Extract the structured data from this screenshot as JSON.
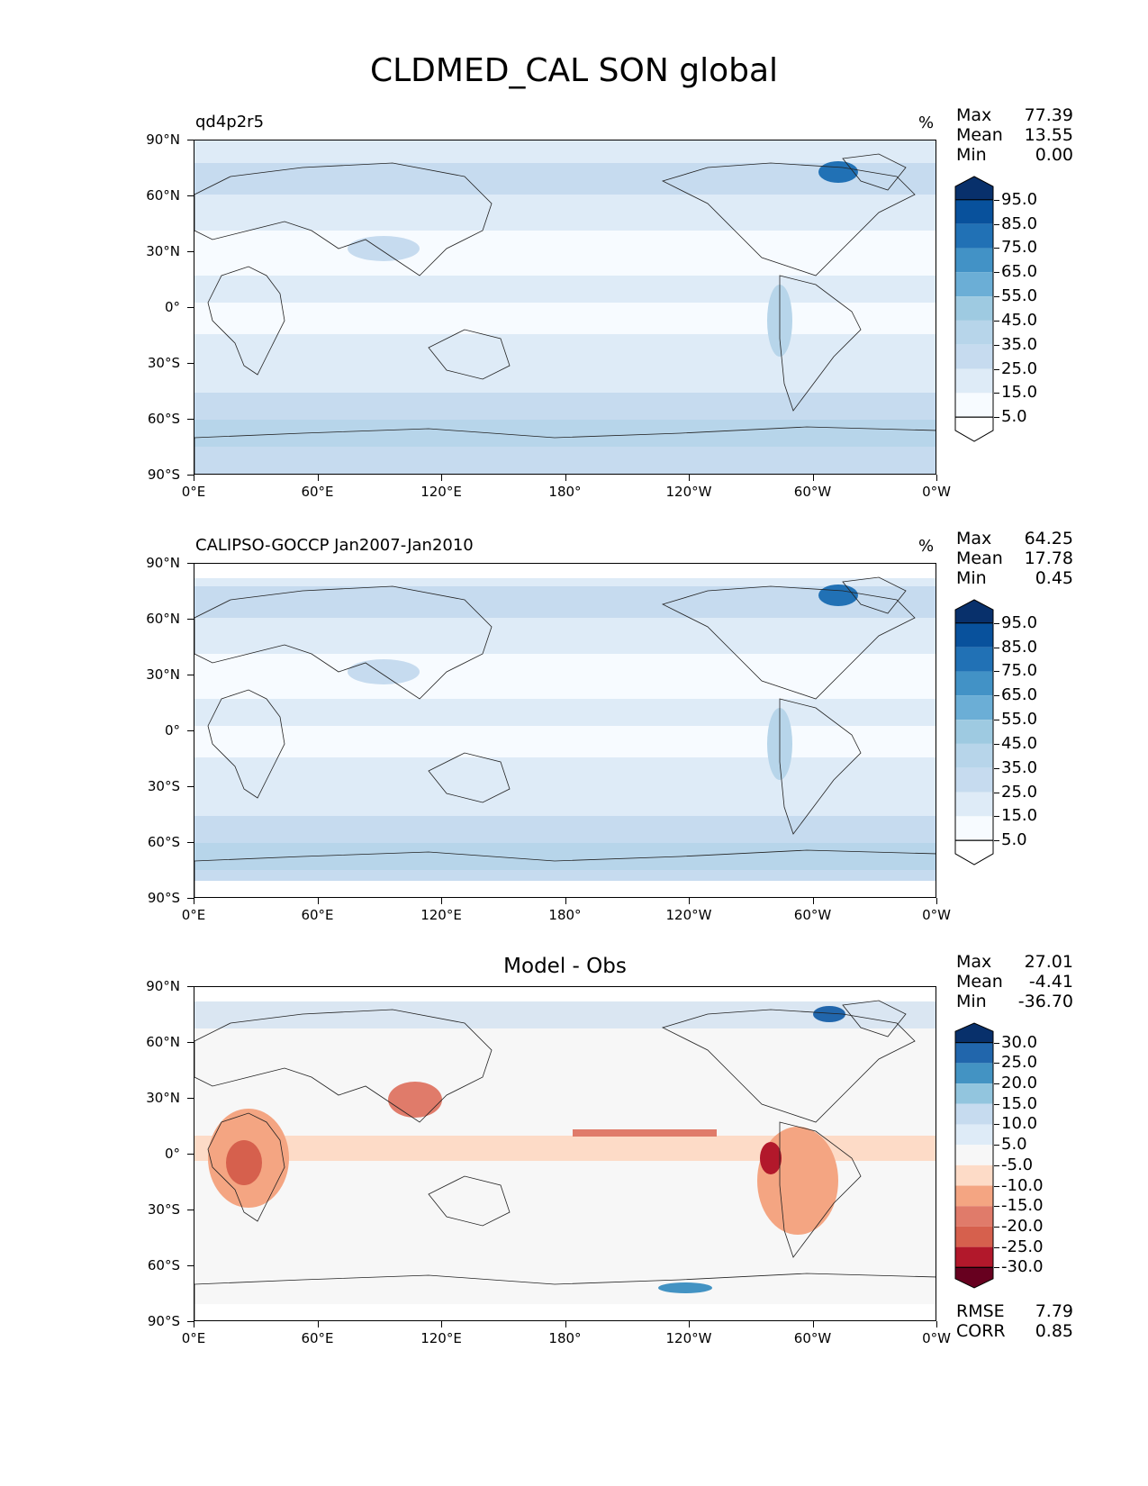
{
  "figure": {
    "title": "CLDMED_CAL SON global"
  },
  "axes": {
    "y_ticks": [
      "90°N",
      "60°N",
      "30°N",
      "0°",
      "30°S",
      "60°S",
      "90°S"
    ],
    "x_ticks": [
      "0°E",
      "60°E",
      "120°E",
      "180°",
      "120°W",
      "60°W",
      "0°W"
    ]
  },
  "panels": [
    {
      "id": "model",
      "title_left": "qd4p2r5",
      "title_center": "",
      "unit": "%",
      "stats": [
        {
          "label": "Max",
          "value": "77.39"
        },
        {
          "label": "Mean",
          "value": "13.55"
        },
        {
          "label": "Min",
          "value": "0.00"
        }
      ],
      "colorbar": {
        "labels": [
          "95.0",
          "85.0",
          "75.0",
          "65.0",
          "55.0",
          "45.0",
          "35.0",
          "25.0",
          "15.0",
          "5.0"
        ],
        "colors": [
          "#08306b",
          "#08519c",
          "#2171b5",
          "#4292c6",
          "#6baed6",
          "#9ecae1",
          "#b7d5ea",
          "#c6dbef",
          "#deebf7",
          "#f7fbff",
          "#ffffff"
        ]
      }
    },
    {
      "id": "obs",
      "title_left": "CALIPSO-GOCCP Jan2007-Jan2010",
      "title_center": "",
      "unit": "%",
      "stats": [
        {
          "label": "Max",
          "value": "64.25"
        },
        {
          "label": "Mean",
          "value": "17.78"
        },
        {
          "label": "Min",
          "value": "0.45"
        }
      ],
      "colorbar": {
        "labels": [
          "95.0",
          "85.0",
          "75.0",
          "65.0",
          "55.0",
          "45.0",
          "35.0",
          "25.0",
          "15.0",
          "5.0"
        ],
        "colors": [
          "#08306b",
          "#08519c",
          "#2171b5",
          "#4292c6",
          "#6baed6",
          "#9ecae1",
          "#b7d5ea",
          "#c6dbef",
          "#deebf7",
          "#f7fbff",
          "#ffffff"
        ]
      }
    },
    {
      "id": "diff",
      "title_left": "",
      "title_center": "Model - Obs",
      "unit": "",
      "stats": [
        {
          "label": "Max",
          "value": "27.01"
        },
        {
          "label": "Mean",
          "value": "-4.41"
        },
        {
          "label": "Min",
          "value": "-36.70"
        }
      ],
      "extra_stats": [
        {
          "label": "RMSE",
          "value": "7.79"
        },
        {
          "label": "CORR",
          "value": "0.85"
        }
      ],
      "colorbar": {
        "labels": [
          "30.0",
          "25.0",
          "20.0",
          "15.0",
          "10.0",
          "5.0",
          "-5.0",
          "-10.0",
          "-15.0",
          "-20.0",
          "-25.0",
          "-30.0"
        ],
        "colors": [
          "#08306b",
          "#2166ac",
          "#4393c3",
          "#92c5de",
          "#c6dbef",
          "#deebf7",
          "#f7f7f7",
          "#fddbc7",
          "#f4a582",
          "#e07b6a",
          "#d6604d",
          "#b2182b",
          "#67001f"
        ]
      }
    }
  ],
  "chart_data": [
    {
      "type": "heatmap",
      "title": "qd4p2r5",
      "units": "%",
      "x_ticks": [
        "0°E",
        "60°E",
        "120°E",
        "180°",
        "120°W",
        "60°W",
        "0°W"
      ],
      "y_ticks": [
        "90°N",
        "60°N",
        "30°N",
        "0°",
        "30°S",
        "60°S",
        "90°S"
      ],
      "levels": [
        5,
        15,
        25,
        35,
        45,
        55,
        65,
        75,
        85,
        95
      ],
      "stats": {
        "max": 77.39,
        "mean": 13.55,
        "min": 0.0
      }
    },
    {
      "type": "heatmap",
      "title": "CALIPSO-GOCCP Jan2007-Jan2010",
      "units": "%",
      "x_ticks": [
        "0°E",
        "60°E",
        "120°E",
        "180°",
        "120°W",
        "60°W",
        "0°W"
      ],
      "y_ticks": [
        "90°N",
        "60°N",
        "30°N",
        "0°",
        "30°S",
        "60°S",
        "90°S"
      ],
      "levels": [
        5,
        15,
        25,
        35,
        45,
        55,
        65,
        75,
        85,
        95
      ],
      "stats": {
        "max": 64.25,
        "mean": 17.78,
        "min": 0.45
      }
    },
    {
      "type": "heatmap",
      "title": "Model - Obs",
      "x_ticks": [
        "0°E",
        "60°E",
        "120°E",
        "180°",
        "120°W",
        "60°W",
        "0°W"
      ],
      "y_ticks": [
        "90°N",
        "60°N",
        "30°N",
        "0°",
        "30°S",
        "60°S",
        "90°S"
      ],
      "levels": [
        -30,
        -25,
        -20,
        -15,
        -10,
        -5,
        5,
        10,
        15,
        20,
        25,
        30
      ],
      "stats": {
        "max": 27.01,
        "mean": -4.41,
        "min": -36.7,
        "rmse": 7.79,
        "corr": 0.85
      }
    }
  ]
}
